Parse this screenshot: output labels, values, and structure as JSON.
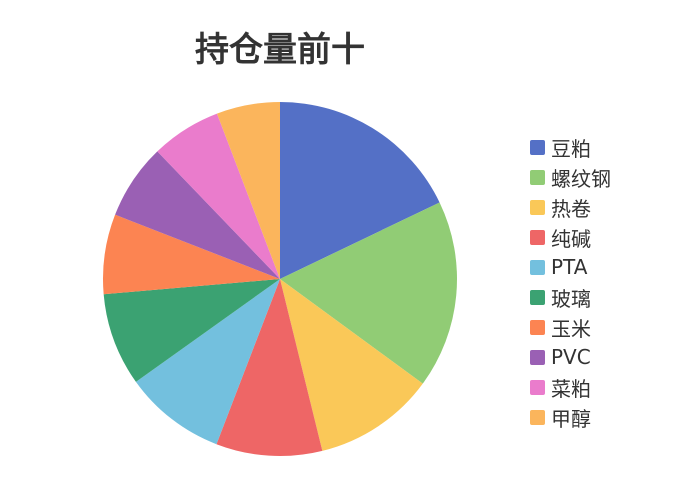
{
  "chart_data": {
    "type": "pie",
    "title": "持仓量前十",
    "categories": [
      "豆粕",
      "螺纹钢",
      "热卷",
      "纯碱",
      "PTA",
      "玻璃",
      "玉米",
      "PVC",
      "菜粕",
      "甲醇"
    ],
    "values": [
      17.9,
      17.2,
      11.1,
      9.7,
      9.3,
      8.5,
      7.3,
      6.9,
      6.4,
      5.8
    ],
    "colors": [
      "#5470c6",
      "#91cc75",
      "#fac858",
      "#ee6666",
      "#73c0de",
      "#3ba272",
      "#fc8452",
      "#9a60b4",
      "#ea7ccc",
      "#fbb55c"
    ],
    "legend_position": "right"
  }
}
